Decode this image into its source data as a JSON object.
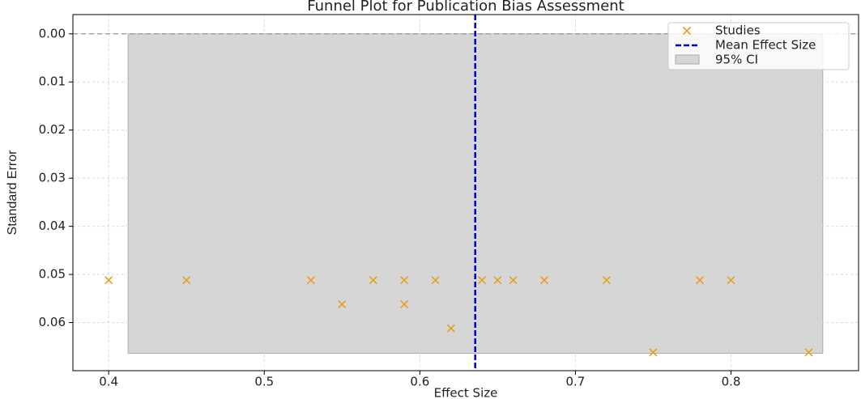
{
  "chart_data": {
    "type": "scatter",
    "title": "Funnel Plot for Publication Bias Assessment",
    "x_label": "Effect Size",
    "y_label": "Standard Error",
    "xlim": [
      0.377,
      0.882
    ],
    "ylim": [
      0.07,
      -0.004
    ],
    "xticks": [
      0.4,
      0.5,
      0.6,
      0.7,
      0.8
    ],
    "yticks": [
      {
        "value": 0,
        "label": "0.00"
      },
      0.01,
      0.02,
      0.03,
      0.04,
      0.05,
      0.06
    ],
    "grid": true,
    "legend": "upper right",
    "hline": 0,
    "series": [
      {
        "name": "Studies",
        "color": "#e6a020",
        "x": [
          0.4,
          0.45,
          0.53,
          0.55,
          0.57,
          0.59,
          0.59,
          0.61,
          0.62,
          0.64,
          0.65,
          0.66,
          0.68,
          0.72,
          0.75,
          0.78,
          0.8,
          0.85
        ],
        "values": [
          0.0512,
          0.0512,
          0.0512,
          0.0562,
          0.0512,
          0.0512,
          0.0562,
          0.0512,
          0.0612,
          0.0512,
          0.0512,
          0.0512,
          0.0512,
          0.0512,
          0.0662,
          0.0512,
          0.0512,
          0.0662
        ]
      }
    ],
    "mean_line": {
      "name": "Mean Effect Size",
      "value": 0.6356,
      "color": "#0000cc"
    },
    "ci": {
      "name": "95% CI",
      "x": [
        0.4125,
        0.859
      ],
      "y": [
        0,
        0.0664
      ],
      "color": "#d6d6d6"
    }
  }
}
